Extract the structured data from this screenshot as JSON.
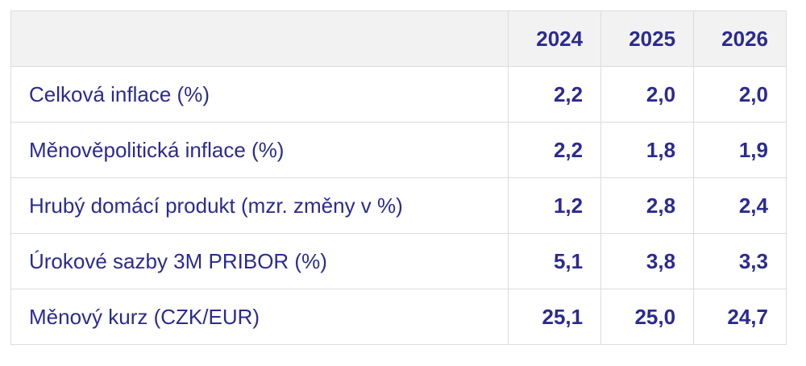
{
  "table": {
    "header": [
      "",
      "2024",
      "2025",
      "2026"
    ],
    "rows": [
      [
        "Celková inflace (%)",
        "2,2",
        "2,0",
        "2,0"
      ],
      [
        "Měnověpolitická inflace (%)",
        "2,2",
        "1,8",
        "1,9"
      ],
      [
        "Hrubý domácí produkt (mzr. změny v %)",
        "1,2",
        "2,8",
        "2,4"
      ],
      [
        "Úrokové sazby 3M PRIBOR (%)",
        "5,1",
        "3,8",
        "3,3"
      ],
      [
        "Měnový kurz (CZK/EUR)",
        "25,1",
        "25,0",
        "24,7"
      ]
    ]
  }
}
